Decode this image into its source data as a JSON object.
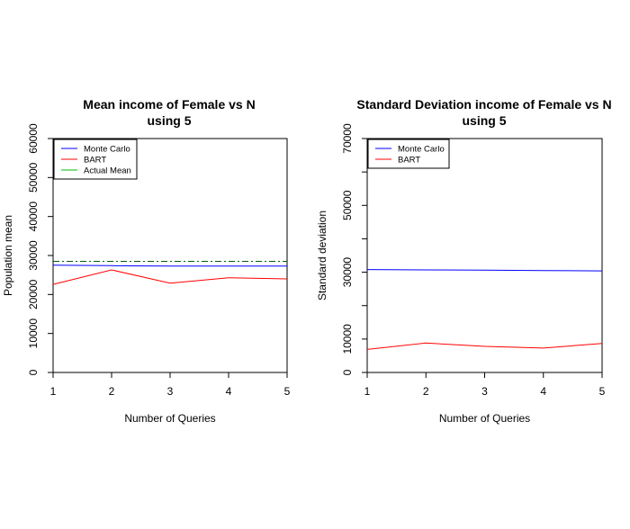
{
  "chart_data": [
    {
      "type": "line",
      "title": "Mean income of Female vs N",
      "subtitle": "using 5",
      "xlabel": "Number of Queries",
      "ylabel": "Population mean",
      "x": [
        1,
        2,
        3,
        4,
        5
      ],
      "xlim": [
        1,
        5
      ],
      "ylim": [
        0,
        60000
      ],
      "x_ticks": [
        "1",
        "2",
        "3",
        "4",
        "5"
      ],
      "y_ticks": [
        "0",
        "10000",
        "20000",
        "30000",
        "40000",
        "50000",
        "60000"
      ],
      "y_tick_values": [
        0,
        10000,
        20000,
        30000,
        40000,
        50000,
        60000
      ],
      "legend_position": "top-left",
      "grid": false,
      "series": [
        {
          "name": "Monte Carlo",
          "color": "#0000ff",
          "values": [
            27500,
            27400,
            27300,
            27300,
            27300
          ]
        },
        {
          "name": "BART",
          "color": "#ff0000",
          "values": [
            22600,
            26300,
            22900,
            24300,
            24000
          ]
        },
        {
          "name": "Actual Mean",
          "color": "#00c000",
          "values": [
            28500,
            28500,
            28500,
            28500,
            28500
          ]
        }
      ]
    },
    {
      "type": "line",
      "title": "Standard Deviation income of Female vs N",
      "subtitle": "using 5",
      "xlabel": "Number of Queries",
      "ylabel": "Standard deviation",
      "x": [
        1,
        2,
        3,
        4,
        5
      ],
      "xlim": [
        1,
        5
      ],
      "ylim": [
        0,
        70000
      ],
      "x_ticks": [
        "1",
        "2",
        "3",
        "4",
        "5"
      ],
      "y_ticks": [
        "0",
        "10000",
        "30000",
        "50000",
        "70000"
      ],
      "y_tick_values": [
        0,
        10000,
        30000,
        50000,
        70000
      ],
      "y_minor_tick_values": [
        20000,
        40000,
        60000
      ],
      "legend_position": "top-left",
      "grid": false,
      "series": [
        {
          "name": "Monte Carlo",
          "color": "#0000ff",
          "values": [
            30800,
            30700,
            30600,
            30500,
            30400
          ]
        },
        {
          "name": "BART",
          "color": "#ff0000",
          "values": [
            6900,
            8800,
            7800,
            7300,
            8700
          ]
        }
      ]
    }
  ]
}
